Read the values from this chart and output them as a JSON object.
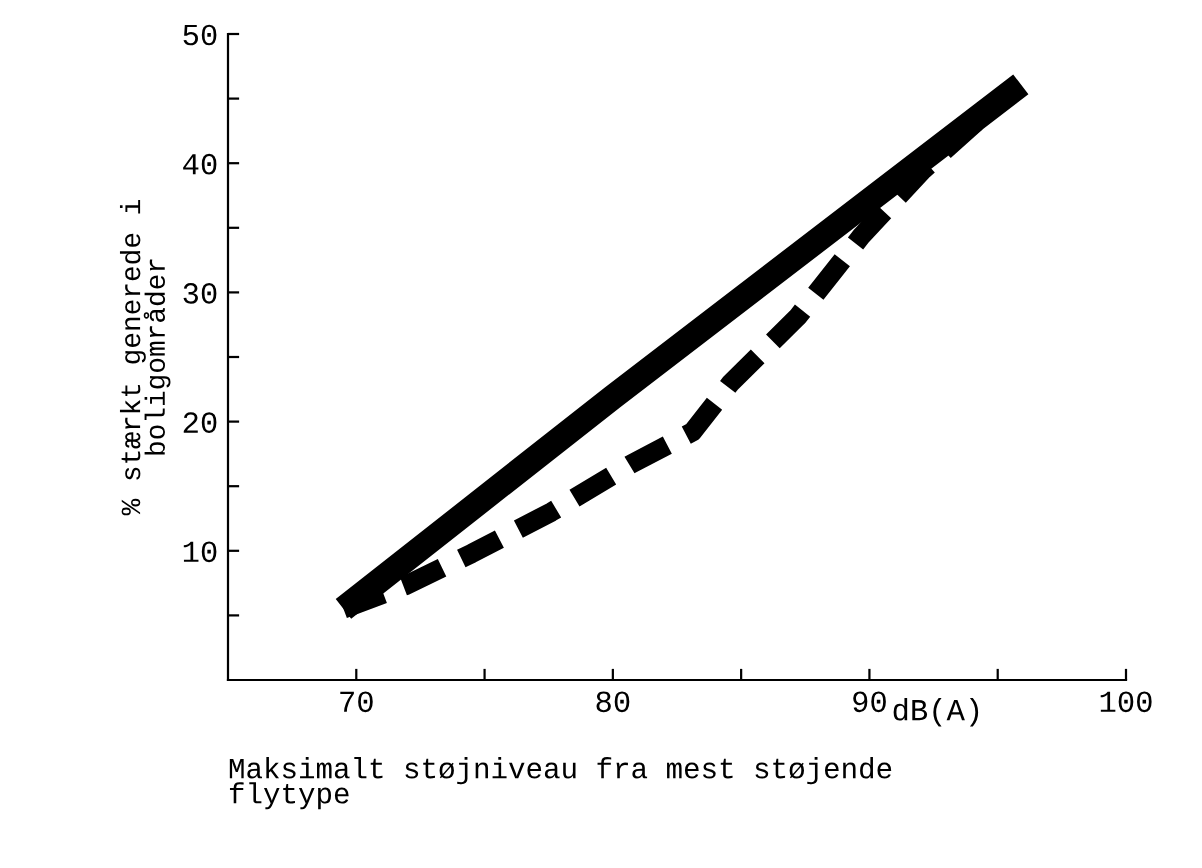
{
  "chart_data": {
    "type": "line",
    "ylabel": "% stærkt generede i\nboligområder",
    "xlabel": "Maksimalt støjniveau fra mest støjende\nflytype",
    "annotations": [
      "dB(A)"
    ],
    "series": [
      {
        "color": "#000000",
        "line_style": "solid",
        "x": [
          69.5,
          80,
          95.9
        ],
        "values": [
          5.5,
          21.9,
          46.1
        ]
      },
      {
        "color": "#000000",
        "line_style": "dashed",
        "x": [
          69.5,
          71.9,
          74.5,
          77.6,
          80.7,
          83.1,
          84.6,
          87.2,
          89.7,
          92.1,
          94.9
        ],
        "values": [
          5.5,
          7.3,
          9.8,
          13.0,
          16.7,
          19.2,
          23.0,
          28.1,
          34.4,
          39.5,
          44.5
        ]
      }
    ],
    "xlim": [
      65,
      100
    ],
    "ylim": [
      0,
      50
    ],
    "xticks": [
      70,
      {
        "value": 75,
        "label": null
      },
      80,
      {
        "value": 85,
        "label": null
      },
      90,
      {
        "value": 95,
        "label": null
      },
      100
    ],
    "yticks": [
      {
        "value": 5,
        "label": null
      },
      10,
      {
        "value": 15,
        "label": null
      },
      20,
      {
        "value": 25,
        "label": null
      },
      30,
      {
        "value": 35,
        "label": null
      },
      40,
      {
        "value": 45,
        "label": null
      },
      50
    ],
    "grid": false,
    "marker": "none"
  }
}
